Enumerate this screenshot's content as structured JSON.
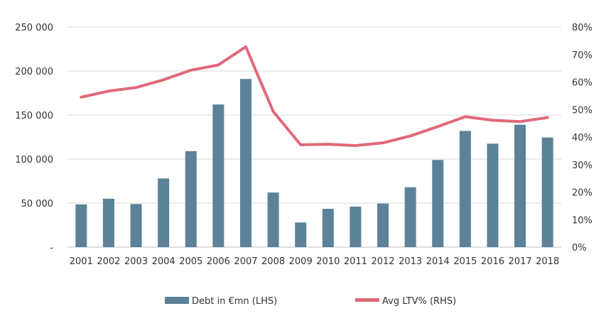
{
  "chart_data": {
    "type": "bar",
    "categories": [
      "2001",
      "2002",
      "2003",
      "2004",
      "2005",
      "2006",
      "2007",
      "2008",
      "2009",
      "2010",
      "2011",
      "2012",
      "2013",
      "2014",
      "2015",
      "2016",
      "2017",
      "2018"
    ],
    "series": [
      {
        "name": "Debt in €mn (LHS)",
        "type": "bar",
        "axis": "left",
        "color": "#5b8299",
        "values": [
          48500,
          55000,
          49000,
          78000,
          109000,
          162000,
          191000,
          62000,
          28000,
          43500,
          46000,
          49500,
          68000,
          99000,
          132000,
          117500,
          139000,
          124500
        ]
      },
      {
        "name": "Avg LTV% (RHS)",
        "type": "line",
        "axis": "right",
        "color": "#e06878",
        "values": [
          54.5,
          56.7,
          58,
          60.8,
          64.3,
          66.2,
          72.8,
          49.3,
          37.2,
          37.4,
          36.9,
          37.9,
          40.4,
          43.8,
          47.4,
          46.1,
          45.6,
          47.1
        ]
      }
    ],
    "y_left": {
      "min": 0,
      "max": 250000,
      "ticks": [
        0,
        50000,
        100000,
        150000,
        200000,
        250000
      ],
      "tick_labels": [
        "-",
        "50 000",
        "100 000",
        "150 000",
        "200 000",
        "250 000"
      ]
    },
    "y_right": {
      "min": 0,
      "max": 80,
      "ticks": [
        0,
        10,
        20,
        30,
        40,
        50,
        60,
        70,
        80
      ],
      "tick_labels": [
        "0%",
        "10%",
        "20%",
        "30%",
        "40%",
        "50%",
        "60%",
        "70%",
        "80%"
      ]
    },
    "grid": true,
    "legend_position": "bottom"
  }
}
